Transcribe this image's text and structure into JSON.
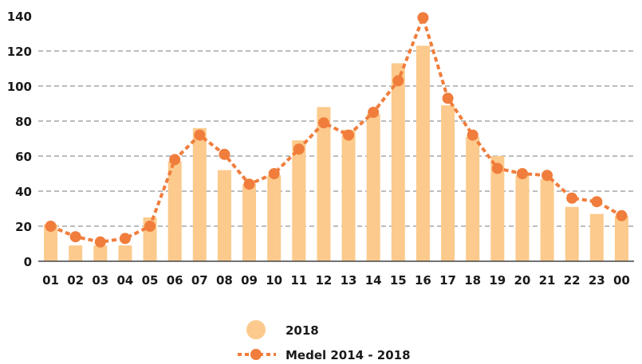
{
  "chart_data": {
    "type": "bar",
    "categories": [
      "01",
      "02",
      "03",
      "04",
      "05",
      "06",
      "07",
      "08",
      "09",
      "10",
      "11",
      "12",
      "13",
      "14",
      "15",
      "16",
      "17",
      "18",
      "19",
      "20",
      "21",
      "22",
      "23",
      "00"
    ],
    "ylim": [
      0,
      140
    ],
    "yticks": [
      0,
      20,
      40,
      60,
      80,
      100,
      120,
      140
    ],
    "grid": true,
    "legend_position": "bottom-center",
    "series": [
      {
        "name": "2018",
        "kind": "bar",
        "color": "#fcca8c",
        "values": [
          21,
          9,
          9,
          9,
          25,
          57,
          76,
          52,
          44,
          49,
          69,
          88,
          75,
          84,
          113,
          123,
          89,
          71,
          60,
          49,
          47,
          31,
          27,
          26
        ]
      },
      {
        "name": "Medel 2014 - 2018",
        "kind": "line",
        "color": "#f07d3c",
        "values": [
          20,
          14,
          11,
          13,
          20,
          58,
          72,
          61,
          44,
          50,
          64,
          79,
          72,
          85,
          103,
          139,
          93,
          72,
          53,
          50,
          49,
          36,
          34,
          26
        ]
      }
    ]
  }
}
